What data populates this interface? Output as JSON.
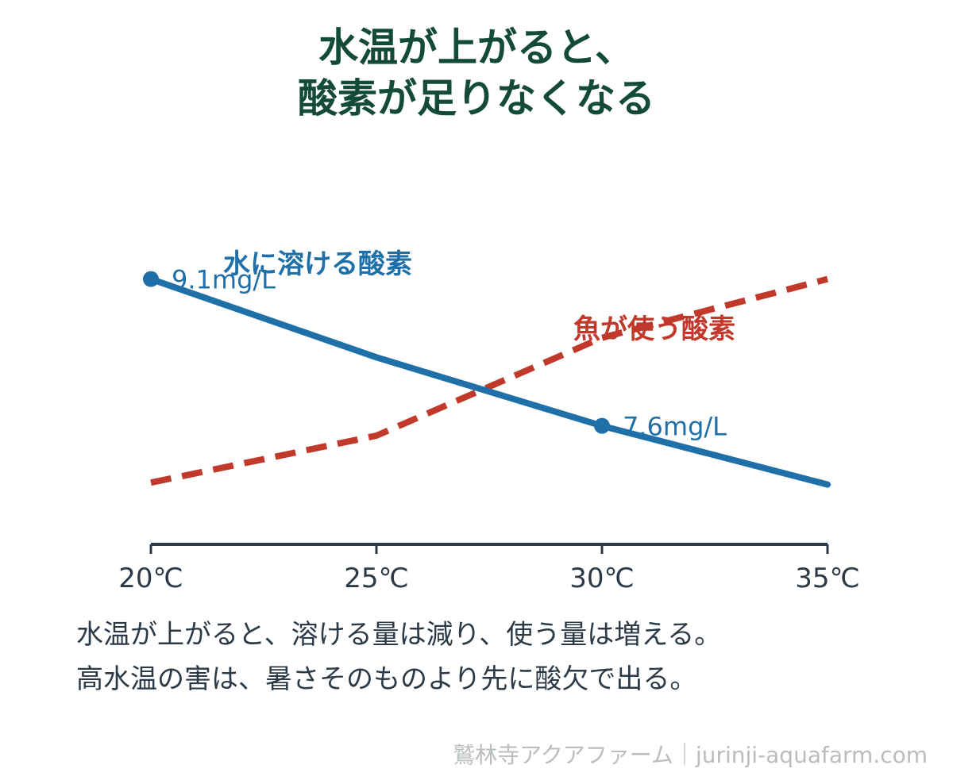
{
  "title": {
    "line1": "水温が上がると、",
    "line2": "酸素が足りなくなる"
  },
  "chart_data": {
    "type": "line",
    "x": [
      "20℃",
      "25℃",
      "30℃",
      "35℃"
    ],
    "series": [
      {
        "name": "水に溶ける酸素",
        "color": "#1f6fa8",
        "style": "solid",
        "values": [
          9.1,
          8.3,
          7.6,
          7.0
        ],
        "point_labels": [
          {
            "index": 0,
            "text": "9.1mg/L"
          },
          {
            "index": 2,
            "text": "7.6mg/L"
          }
        ]
      },
      {
        "name": "魚が使う酸素",
        "color": "#c0392b",
        "style": "dashed",
        "values": [
          7.02,
          7.5,
          8.5,
          9.1
        ]
      }
    ],
    "ylim": [
      6.6,
      9.6
    ],
    "y_axis_shown": false,
    "grid": false,
    "legend": "inline labels",
    "axis_color": "#2c3a47"
  },
  "caption": {
    "line1": "水温が上がると、溶ける量は減り、使う量は増える。",
    "line2": "高水温の害は、暑さそのものより先に酸欠で出る。"
  },
  "footer": "鷲林寺アクアファーム｜jurinji-aquafarm.com"
}
